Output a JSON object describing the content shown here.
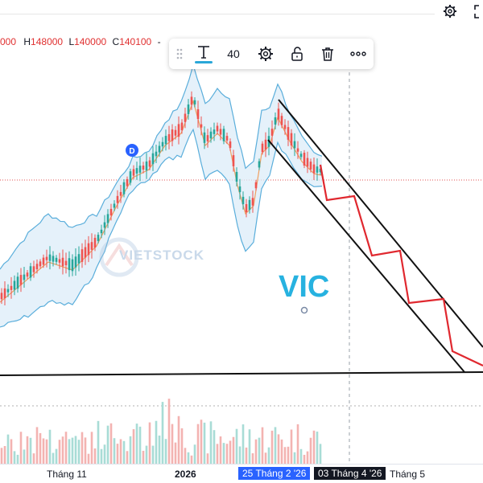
{
  "ohlc": {
    "open_value": "000",
    "high_label": "H",
    "high_value": "148000",
    "low_label": "L",
    "low_value": "140000",
    "close_label": "C",
    "close_value": "140100",
    "trailing": "-"
  },
  "drawing_toolbar": {
    "text_tool_icon": "text-T-icon",
    "font_size": "40",
    "settings_icon": "gear-icon",
    "lock_icon": "unlock-icon",
    "delete_icon": "trash-icon",
    "more_icon": "more-dots-icon"
  },
  "top_right": {
    "settings_icon": "gear-icon",
    "fullscreen_icon": "fullscreen-icon"
  },
  "chart": {
    "symbol_label": "VIC",
    "watermark": "VIETSTOCK",
    "event_marker": "D",
    "colors": {
      "up": "#26a69a",
      "down": "#ef5350",
      "bands": "#5aaedb",
      "ma": "#f0a060",
      "projection": "#e0282f",
      "trendline": "#111111"
    }
  },
  "time_axis": {
    "labels": [
      "Tháng 11",
      "2026",
      "25 Tháng 2 '26",
      "03 Tháng 4 '26",
      "Tháng 5"
    ]
  }
}
